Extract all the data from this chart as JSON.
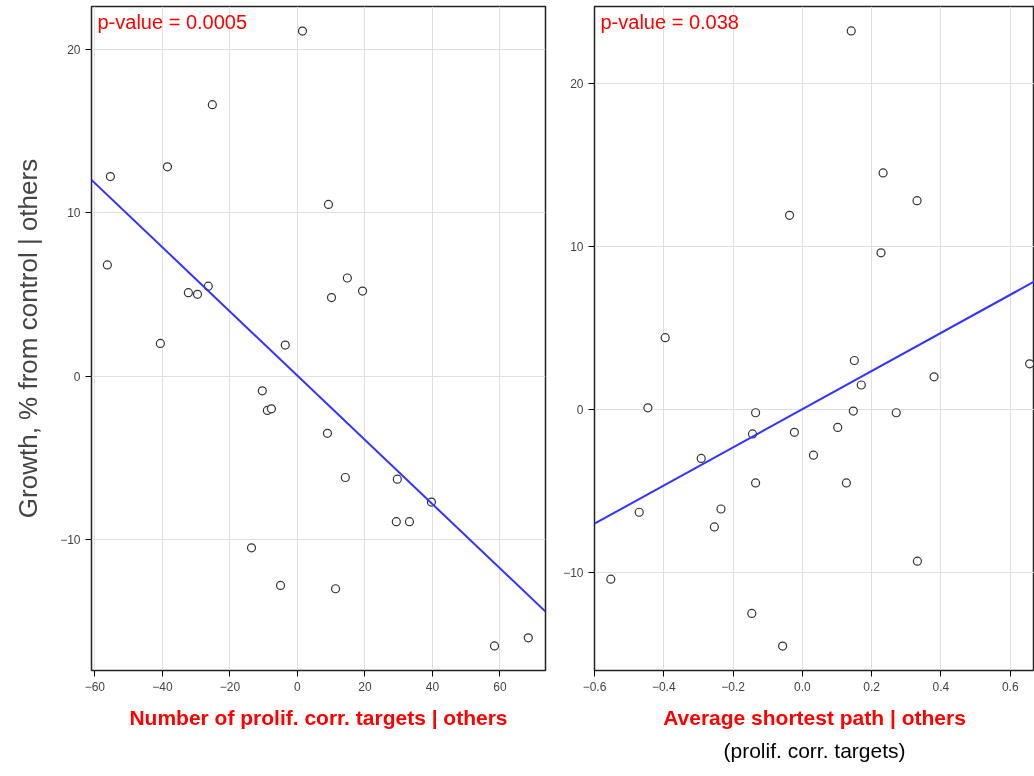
{
  "chart_data": [
    {
      "type": "scatter",
      "xlabel": "Number of prolif. corr. targets | others",
      "ylabel": "Growth, % from control | others",
      "annotations": [
        "p-value = 0.0005"
      ],
      "grid": true,
      "xlim": [
        -61,
        73.5
      ],
      "ylim": [
        -18,
        22.6
      ],
      "xticks": [
        -60,
        -40,
        -20,
        0,
        20,
        40,
        60
      ],
      "yticks": [
        -10,
        0,
        10,
        20
      ],
      "series": [
        {
          "color": "#333333",
          "marker": "circle",
          "x": [
            -55.4,
            -56.3,
            -38.5,
            -25.2,
            1.5,
            -40.6,
            -32.3,
            -29.6,
            -26.4,
            9.2,
            10.1,
            14.8,
            19.3,
            -3.6,
            -10.4,
            -8.9,
            -7.7,
            8.9,
            14.2,
            29.6,
            39.7,
            29.3,
            33.2,
            -13.6,
            -5.0,
            11.3,
            58.4,
            68.4
          ],
          "values": [
            12.2,
            6.8,
            12.8,
            16.6,
            21.1,
            2.0,
            5.1,
            5.0,
            5.5,
            10.5,
            4.8,
            6.0,
            5.2,
            1.9,
            -0.9,
            -2.1,
            -2.0,
            -3.5,
            -6.2,
            -6.3,
            -7.7,
            -8.9,
            -8.9,
            -10.5,
            -12.8,
            -13.0,
            -16.5,
            -16.0
          ]
        },
        {
          "type": "line",
          "color": "#3333ff",
          "x": [
            -61,
            73.5
          ],
          "values": [
            12.0,
            -14.4
          ]
        }
      ]
    },
    {
      "type": "scatter",
      "xlabel": "Average shortest path | others\n(prolif. corr. targets)",
      "annotations": [
        "p-value = 0.038"
      ],
      "grid": true,
      "xlim": [
        -0.6,
        0.67
      ],
      "ylim": [
        -16,
        24.7
      ],
      "xticks": [
        {
          "value": -0.6,
          "label": "−0.6"
        },
        {
          "value": -0.4,
          "label": "−0.4"
        },
        {
          "value": -0.2,
          "label": "−0.2"
        },
        {
          "value": 0,
          "label": "0.0"
        },
        0.2,
        0.4,
        0.6
      ],
      "yticks": [
        -10,
        0,
        10,
        20
      ],
      "series": [
        {
          "color": "#333333",
          "marker": "circle",
          "x": [
            0.141,
            0.233,
            0.331,
            -0.037,
            0.227,
            -0.396,
            0.15,
            0.17,
            0.38,
            0.656,
            -0.446,
            -0.135,
            0.147,
            0.271,
            -0.144,
            -0.023,
            0.102,
            0.032,
            -0.292,
            -0.135,
            0.127,
            -0.471,
            -0.235,
            -0.254,
            -0.553,
            0.332,
            -0.146,
            -0.057
          ],
          "values": [
            23.2,
            14.5,
            12.8,
            11.9,
            9.6,
            4.4,
            3.0,
            1.5,
            2.0,
            2.8,
            0.1,
            -0.2,
            -0.1,
            -0.2,
            -1.5,
            -1.4,
            -1.1,
            -2.8,
            -3.0,
            -4.5,
            -4.5,
            -6.3,
            -6.1,
            -7.2,
            -10.4,
            -9.3,
            -12.5,
            -14.5
          ]
        },
        {
          "type": "line",
          "color": "#3333ff",
          "x": [
            -0.6,
            0.67
          ],
          "values": [
            -7.0,
            7.85
          ]
        }
      ]
    }
  ]
}
